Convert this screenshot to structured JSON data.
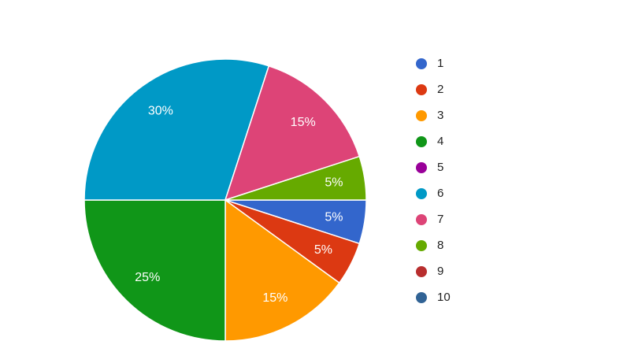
{
  "chart_data": {
    "type": "pie",
    "title": "",
    "legend": {
      "position": "right"
    },
    "start_angle_deg": 90,
    "direction": "clockwise",
    "background_color": "#ffffff",
    "slice_label_color": "#ffffff",
    "slice_border_color": "#ffffff",
    "legend_text_color": "#212121",
    "slices": [
      {
        "label": "1",
        "value": 5,
        "percent_label": "5%",
        "color": "#3366CC"
      },
      {
        "label": "2",
        "value": 5,
        "percent_label": "5%",
        "color": "#DC3912"
      },
      {
        "label": "3",
        "value": 15,
        "percent_label": "15%",
        "color": "#FF9900"
      },
      {
        "label": "4",
        "value": 25,
        "percent_label": "25%",
        "color": "#109618"
      },
      {
        "label": "5",
        "value": 0,
        "percent_label": "",
        "color": "#990099"
      },
      {
        "label": "6",
        "value": 30,
        "percent_label": "30%",
        "color": "#0099C6"
      },
      {
        "label": "7",
        "value": 15,
        "percent_label": "15%",
        "color": "#DD4477"
      },
      {
        "label": "8",
        "value": 5,
        "percent_label": "5%",
        "color": "#66AA00"
      },
      {
        "label": "9",
        "value": 0,
        "percent_label": "",
        "color": "#B82E2E"
      },
      {
        "label": "10",
        "value": 0,
        "percent_label": "",
        "color": "#316395"
      }
    ]
  }
}
